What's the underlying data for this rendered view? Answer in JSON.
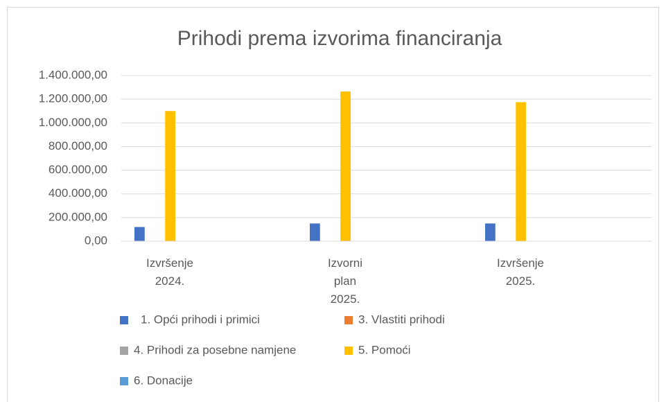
{
  "chart_data": {
    "type": "bar",
    "title": "Prihodi prema izvorima financiranja",
    "categories": [
      "Izvršenje 2024.",
      "Izvorni plan 2025.",
      "Izvršenje 2025."
    ],
    "series": [
      {
        "name": "1. Opći prihodi i primici",
        "color": "#4472c4",
        "values": [
          120000,
          150000,
          150000
        ]
      },
      {
        "name": "3. Vlastiti prihodi",
        "color": "#ed7d31",
        "values": [
          0,
          0,
          0
        ]
      },
      {
        "name": "4. Prihodi za posebne namjene",
        "color": "#a5a5a5",
        "values": [
          0,
          0,
          0
        ]
      },
      {
        "name": "5. Pomoći",
        "color": "#ffc000",
        "values": [
          1100000,
          1265000,
          1175000
        ]
      },
      {
        "name": "6. Donacije",
        "color": "#5b9bd5",
        "values": [
          0,
          0,
          0
        ]
      }
    ],
    "ylim": [
      0,
      1400000
    ],
    "yticks": [
      {
        "value": 0,
        "label": "0,00"
      },
      {
        "value": 200000,
        "label": "200.000,00"
      },
      {
        "value": 400000,
        "label": "400.000,00"
      },
      {
        "value": 600000,
        "label": "600.000,00"
      },
      {
        "value": 800000,
        "label": "800.000,00"
      },
      {
        "value": 1000000,
        "label": "1.000.000,00"
      },
      {
        "value": 1200000,
        "label": "1.200.000,00"
      },
      {
        "value": 1400000,
        "label": "1.400.000,00"
      }
    ],
    "grid": true
  }
}
